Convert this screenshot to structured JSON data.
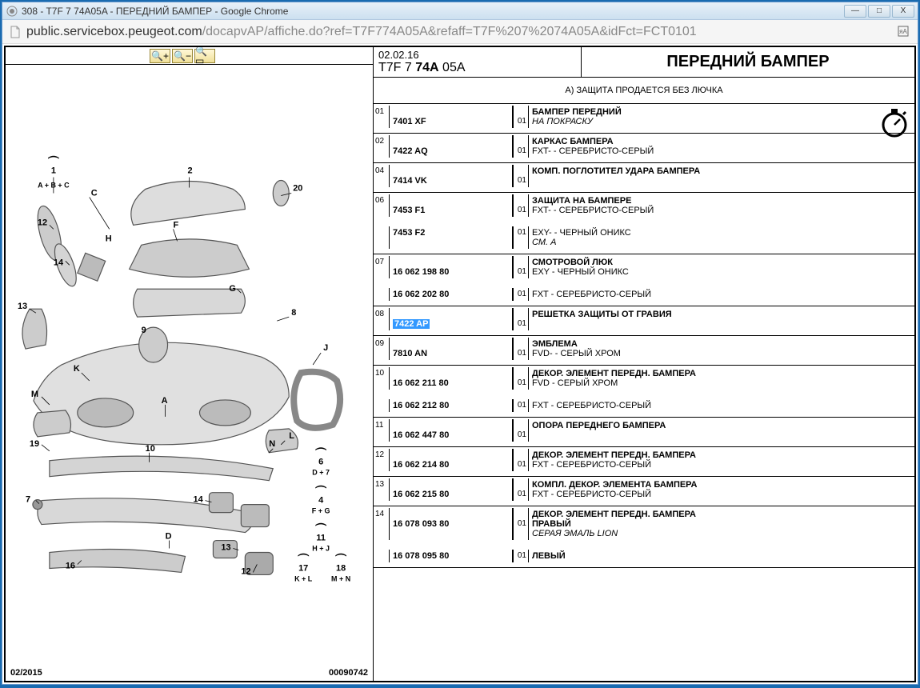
{
  "window": {
    "title": "308 - T7F 7 74A05A - ПЕРЕДНИЙ БАМПЕР - Google Chrome",
    "min": "—",
    "max": "□",
    "close": "X"
  },
  "address": {
    "host": "public.servicebox.peugeot.com",
    "path": "/docapvAP/affiche.do?ref=T7F774A05A&refaff=T7F%207%2074A05A&idFct=FCT0101"
  },
  "diagram": {
    "date": "02/2015",
    "code": "00090742",
    "labels": {
      "l1": "1",
      "l1sub": "A + B + C",
      "l2": "2",
      "lC": "C",
      "l20": "20",
      "l12": "12",
      "lH": "H",
      "lF": "F",
      "l14": "14",
      "lG": "G",
      "l13": "13",
      "l9": "9",
      "l8": "8",
      "lJ": "J",
      "lK": "K",
      "lM": "M",
      "lA": "A",
      "l19": "19",
      "l10": "10",
      "lN": "N",
      "lL": "L",
      "l6": "6",
      "l6sub": "D + 7",
      "l7": "7",
      "l14b": "14",
      "l4": "4",
      "l4sub": "F + G",
      "lD": "D",
      "l13b": "13",
      "l11": "11",
      "l11sub": "H + J",
      "l16": "16",
      "l12b": "12",
      "l17": "17",
      "l17sub": "K + L",
      "l18": "18",
      "l18sub": "M + N"
    }
  },
  "header": {
    "date": "02.02.16",
    "code_prefix": "T7F 7 ",
    "code_bold": "74A",
    "code_suffix": " 05A",
    "title": "ПЕРЕДНИЙ БАМПЕР"
  },
  "note": "A) ЗАЩИТА ПРОДАЕТСЯ БЕЗ ЛЮЧКА",
  "parts": [
    {
      "num": "01",
      "rows": [
        {
          "partno": "7401 XF",
          "qty": "01",
          "desc_main": "БАМПЕР ПЕРЕДНИЙ",
          "desc_sub": "НА ПОКРАСКУ"
        }
      ]
    },
    {
      "num": "02",
      "rows": [
        {
          "partno": "7422 AQ",
          "qty": "01",
          "desc_main": "КАРКАС БАМПЕРА",
          "desc_plain": "FXT- - СЕРЕБРИСТО-СЕРЫЙ"
        }
      ]
    },
    {
      "num": "04",
      "rows": [
        {
          "partno": "7414 VK",
          "qty": "01",
          "desc_main": "КОМП. ПОГЛОТИТЕЛ УДАРА БАМПЕРА"
        }
      ]
    },
    {
      "num": "06",
      "rows": [
        {
          "partno": "7453 F1",
          "qty": "01",
          "desc_main": "ЗАЩИТА НА БАМПЕРЕ",
          "desc_plain": "FXT- - СЕРЕБРИСТО-СЕРЫЙ"
        },
        {
          "partno": "7453 F2",
          "qty": "01",
          "desc_plain": "EXY- - ЧЕРНЫЙ ОНИКС",
          "desc_sub": "СМ. A"
        }
      ]
    },
    {
      "num": "07",
      "rows": [
        {
          "partno": "16 062 198 80",
          "qty": "01",
          "desc_main": "СМОТРОВОЙ ЛЮК",
          "desc_plain": "EXY - ЧЕРНЫЙ ОНИКС"
        },
        {
          "partno": "16 062 202 80",
          "qty": "01",
          "desc_plain": "FXT - СЕРЕБРИСТО-СЕРЫЙ"
        }
      ]
    },
    {
      "num": "08",
      "rows": [
        {
          "partno": "7422 AP",
          "highlighted": true,
          "qty": "01",
          "desc_main": "РЕШЕТКА ЗАЩИТЫ ОТ ГРАВИЯ"
        }
      ]
    },
    {
      "num": "09",
      "rows": [
        {
          "partno": "7810 AN",
          "qty": "01",
          "desc_main": "ЭМБЛЕМА",
          "desc_plain": "FVD- - СЕРЫЙ ХРОМ"
        }
      ]
    },
    {
      "num": "10",
      "rows": [
        {
          "partno": "16 062 211 80",
          "qty": "01",
          "desc_main": "ДЕКОР. ЭЛЕМЕНТ ПЕРЕДН. БАМПЕРА",
          "desc_plain": "FVD - СЕРЫЙ ХРОМ"
        },
        {
          "partno": "16 062 212 80",
          "qty": "01",
          "desc_plain": "FXT - СЕРЕБРИСТО-СЕРЫЙ"
        }
      ]
    },
    {
      "num": "11",
      "rows": [
        {
          "partno": "16 062 447 80",
          "qty": "01",
          "desc_main": "ОПОРА ПЕРЕДНЕГО БАМПЕРА"
        }
      ]
    },
    {
      "num": "12",
      "rows": [
        {
          "partno": "16 062 214 80",
          "qty": "01",
          "desc_main": "ДЕКОР. ЭЛЕМЕНТ ПЕРЕДН. БАМПЕРА",
          "desc_plain": "FXT - СЕРЕБРИСТО-СЕРЫЙ"
        }
      ]
    },
    {
      "num": "13",
      "rows": [
        {
          "partno": "16 062 215 80",
          "qty": "01",
          "desc_main": "КОМПЛ. ДЕКОР. ЭЛЕМЕНТА БАМПЕРА",
          "desc_plain": "FXT - СЕРЕБРИСТО-СЕРЫЙ"
        }
      ]
    },
    {
      "num": "14",
      "rows": [
        {
          "partno": "16 078 093 80",
          "qty": "01",
          "desc_main": "ДЕКОР. ЭЛЕМЕНТ ПЕРЕДН. БАМПЕРА",
          "desc_plain2": "ПРАВЫЙ",
          "desc_sub": "СЕРАЯ ЭМАЛЬ LION"
        },
        {
          "partno": "16 078 095 80",
          "qty": "01",
          "desc_plain2": "ЛЕВЫЙ"
        }
      ]
    }
  ]
}
